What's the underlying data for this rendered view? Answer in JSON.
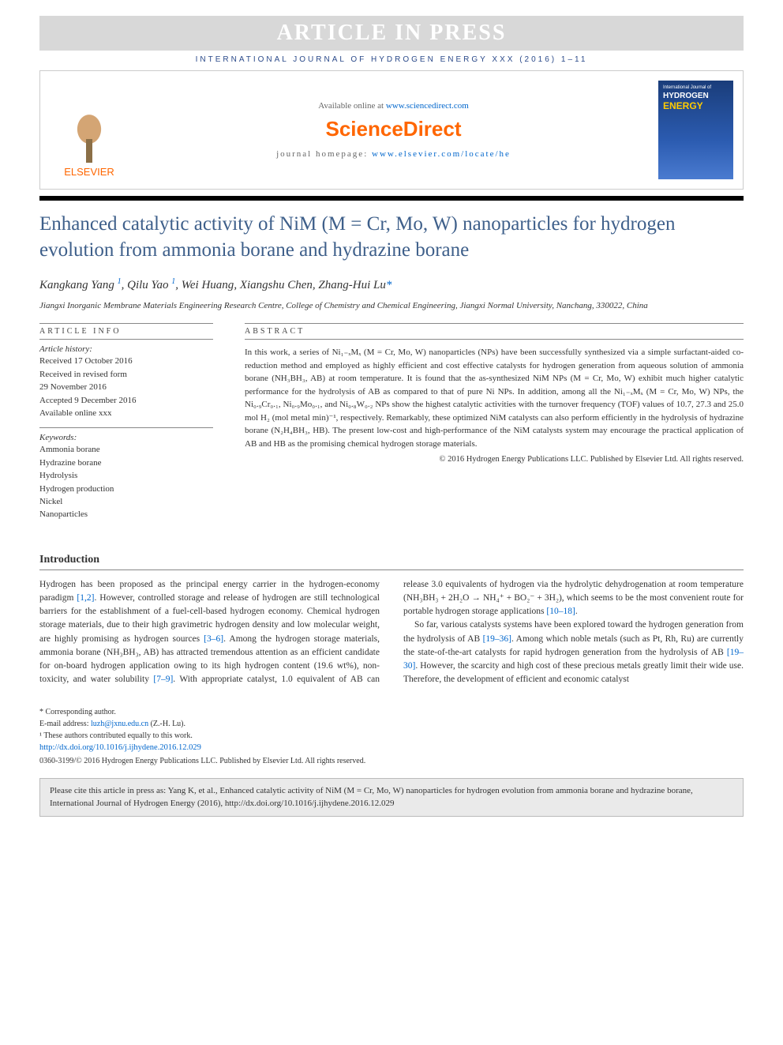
{
  "header": {
    "article_in_press": "ARTICLE IN PRESS",
    "journal_line": "INTERNATIONAL JOURNAL OF HYDROGEN ENERGY XXX (2016) 1–11",
    "available_prefix": "Available online at ",
    "available_url": "www.sciencedirect.com",
    "sciencedirect": "ScienceDirect",
    "homepage_prefix": "journal homepage: ",
    "homepage_url": "www.elsevier.com/locate/he",
    "elsevier": "ELSEVIER",
    "cover_journal": "International Journal of",
    "cover_hydrogen": "HYDROGEN",
    "cover_energy": "ENERGY"
  },
  "article": {
    "title": "Enhanced catalytic activity of NiM (M = Cr, Mo, W) nanoparticles for hydrogen evolution from ammonia borane and hydrazine borane",
    "authors_html": "Kangkang Yang ¹, Qilu Yao ¹, Wei Huang, Xiangshu Chen, Zhang-Hui Lu*",
    "a1": "Kangkang Yang",
    "a2": "Qilu Yao",
    "a3": "Wei Huang",
    "a4": "Xiangshu Chen",
    "a5": "Zhang-Hui Lu",
    "sup1": "1",
    "star": "*",
    "affiliation": "Jiangxi Inorganic Membrane Materials Engineering Research Centre, College of Chemistry and Chemical Engineering, Jiangxi Normal University, Nanchang, 330022, China"
  },
  "info": {
    "section_title": "ARTICLE INFO",
    "history_title": "Article history:",
    "received": "Received 17 October 2016",
    "revised1": "Received in revised form",
    "revised2": "29 November 2016",
    "accepted": "Accepted 9 December 2016",
    "available": "Available online xxx",
    "keywords_title": "Keywords:",
    "kw1": "Ammonia borane",
    "kw2": "Hydrazine borane",
    "kw3": "Hydrolysis",
    "kw4": "Hydrogen production",
    "kw5": "Nickel",
    "kw6": "Nanoparticles"
  },
  "abstract": {
    "title": "ABSTRACT",
    "text": "In this work, a series of Ni₁₋ₓMₓ (M = Cr, Mo, W) nanoparticles (NPs) have been successfully synthesized via a simple surfactant-aided co-reduction method and employed as highly efficient and cost effective catalysts for hydrogen generation from aqueous solution of ammonia borane (NH₃BH₃, AB) at room temperature. It is found that the as-synthesized NiM NPs (M = Cr, Mo, W) exhibit much higher catalytic performance for the hydrolysis of AB as compared to that of pure Ni NPs. In addition, among all the Ni₁₋ₓMₓ (M = Cr, Mo, W) NPs, the Ni₀.₉Cr₀.₁, Ni₀.₉Mo₀.₁, and Ni₀.₈W₀.₂ NPs show the highest catalytic activities with the turnover frequency (TOF) values of 10.7, 27.3 and 25.0 mol H₂ (mol metal min)⁻¹, respectively. Remarkably, these optimized NiM catalysts can also perform efficiently in the hydrolysis of hydrazine borane (N₂H₄BH₃, HB). The present low-cost and high-performance of the NiM catalysts system may encourage the practical application of AB and HB as the promising chemical hydrogen storage materials.",
    "copyright": "© 2016 Hydrogen Energy Publications LLC. Published by Elsevier Ltd. All rights reserved."
  },
  "intro": {
    "title": "Introduction",
    "p1a": "Hydrogen has been proposed as the principal energy carrier in the hydrogen-economy paradigm ",
    "p1ref1": "[1,2]",
    "p1b": ". However, controlled storage and release of hydrogen are still technological barriers for the establishment of a fuel-cell-based hydrogen economy. Chemical hydrogen storage materials, due to their high gravimetric hydrogen density and low molecular weight, are highly promising as hydrogen sources ",
    "p1ref2": "[3–6]",
    "p1c": ". Among the hydrogen storage materials, ammonia borane (NH₃BH₃, AB) has attracted tremendous attention as an efficient candidate for on-board hydrogen application owing to its high hydrogen",
    "p2a": "content (19.6 wt%), non-toxicity, and water solubility ",
    "p2ref1": "[7–9]",
    "p2b": ". With appropriate catalyst, 1.0 equivalent of AB can release 3.0 equivalents of hydrogen via the hydrolytic dehydrogenation at room temperature (NH₃BH₃ + 2H₂O → NH₄⁺ + BO₂⁻ + 3H₂), which seems to be the most convenient route for portable hydrogen storage applications ",
    "p2ref2": "[10–18]",
    "p2c": ".",
    "p3a": "So far, various catalysts systems have been explored toward the hydrogen generation from the hydrolysis of AB ",
    "p3ref1": "[19–36]",
    "p3b": ". Among which noble metals (such as Pt, Rh, Ru) are currently the state-of-the-art catalysts for rapid hydrogen generation from the hydrolysis of AB ",
    "p3ref2": "[19–30]",
    "p3c": ". However, the scarcity and high cost of these precious metals greatly limit their wide use. Therefore, the development of efficient and economic catalyst"
  },
  "footnotes": {
    "corresponding": "* Corresponding author.",
    "email_label": "E-mail address: ",
    "email": "luzh@jxnu.edu.cn",
    "email_suffix": " (Z.-H. Lu).",
    "contrib": "¹ These authors contributed equally to this work.",
    "doi": "http://dx.doi.org/10.1016/j.ijhydene.2016.12.029",
    "bottom_copyright": "0360-3199/© 2016 Hydrogen Energy Publications LLC. Published by Elsevier Ltd. All rights reserved."
  },
  "cite": {
    "text": "Please cite this article in press as: Yang K, et al., Enhanced catalytic activity of NiM (M = Cr, Mo, W) nanoparticles for hydrogen evolution from ammonia borane and hydrazine borane, International Journal of Hydrogen Energy (2016), http://dx.doi.org/10.1016/j.ijhydene.2016.12.029"
  },
  "colors": {
    "link": "#0066cc",
    "orange": "#ff6600",
    "title_blue": "#3e5f8a",
    "header_blue": "#2b4a8a"
  }
}
